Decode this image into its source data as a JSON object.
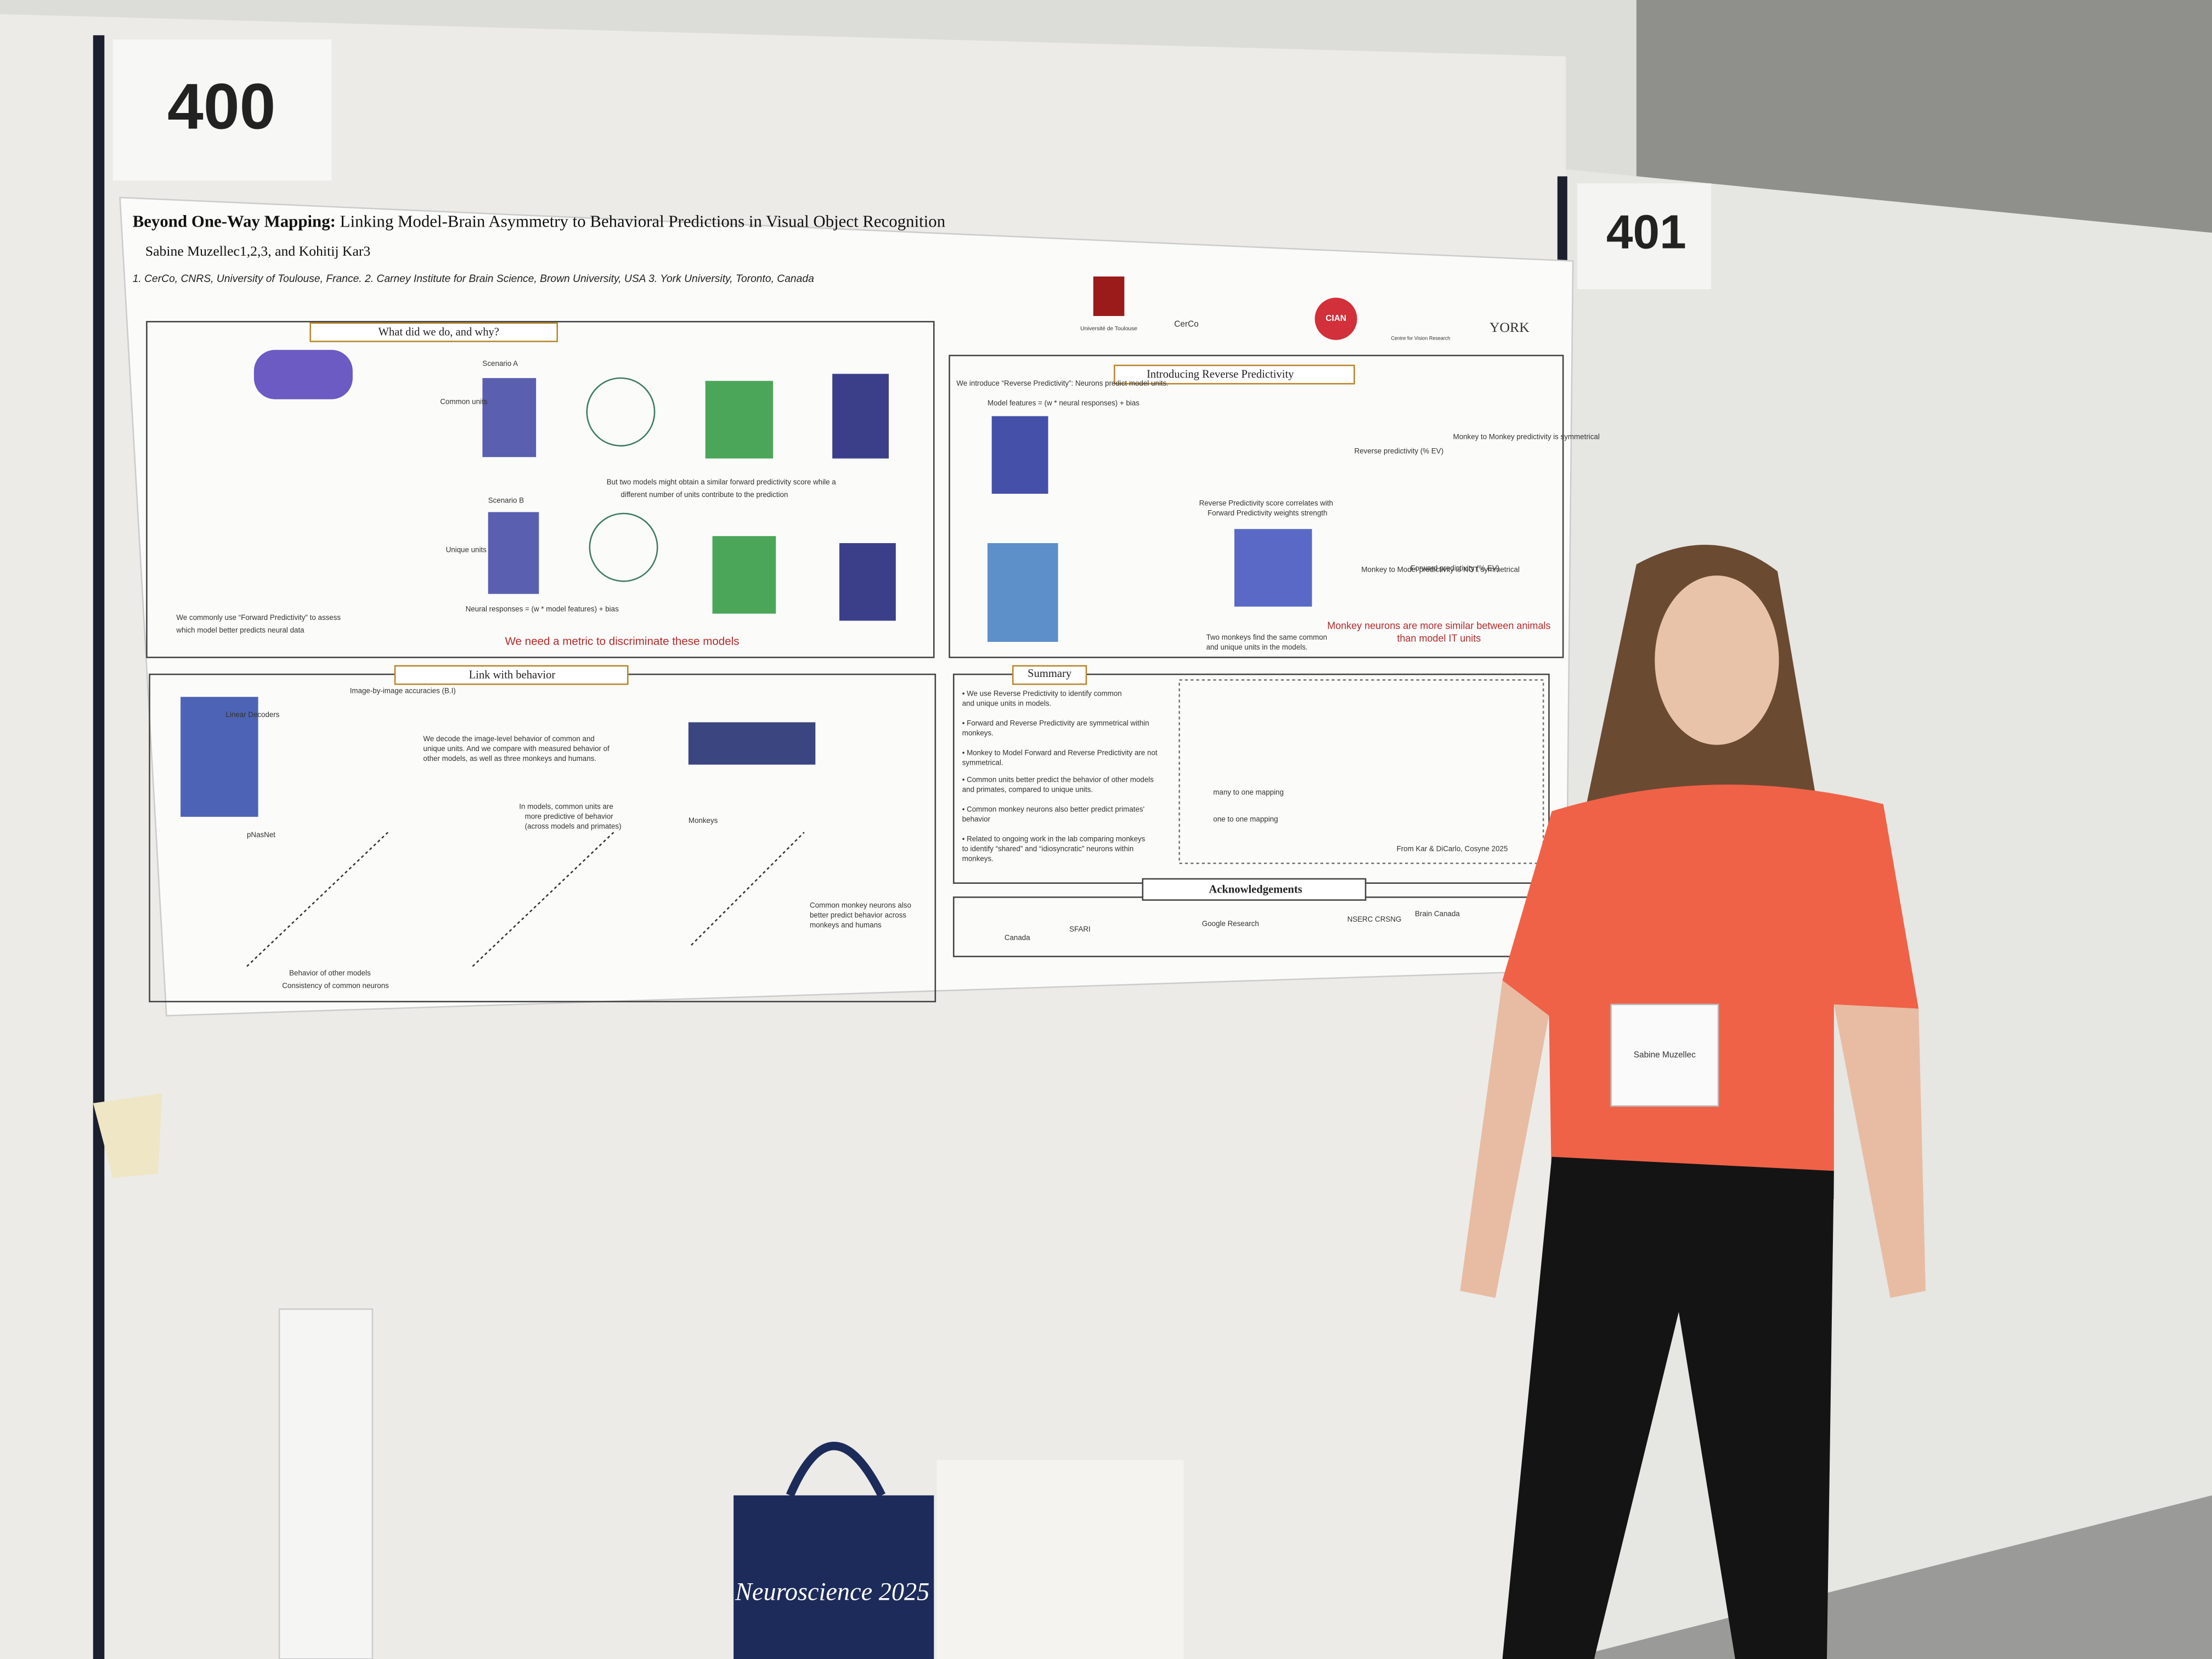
{
  "booths": [
    "400",
    "401"
  ],
  "poster": {
    "title_bold": "Beyond One-Way Mapping:",
    "title_rest": "Linking Model-Brain Asymmetry to Behavioral Predictions in Visual Object Recognition",
    "authors": "Sabine Muzellec1,2,3, and Kohitij Kar3",
    "affiliations": "1.  CerCo, CNRS, University of Toulouse, France.  2.  Carney Institute for Brain Science, Brown University, USA 3.  York University, Toronto, Canada",
    "logos": [
      "Université de Toulouse",
      "CerCo",
      "CIAN",
      "Centre for Vision Research",
      "YORK"
    ],
    "sections": [
      {
        "heading": "What did we do, and why?",
        "texts": [
          "Scenario A",
          "Scenario B",
          "Common units",
          "Unique units",
          "We commonly use “Forward Predictivity” to assess",
          "which model better predicts neural data",
          "But two models might obtain a similar forward predictivity score while a",
          "different number of units contribute to the prediction",
          "Neural responses = (w * model features) + bias"
        ],
        "highlight": "We need a metric to discriminate these models"
      },
      {
        "heading": "Introducing Reverse Predictivity",
        "texts": [
          "We introduce “Reverse Predictivity”: Neurons predict model units.",
          "Model features = (w * neural responses) + bias",
          "Reverse Predictivity score correlates with",
          "Forward Predictivity weights strength",
          "Two monkeys find the same common",
          "and unique units in the models.",
          "Monkey to Monkey predictivity is symmetrical",
          "Monkey to Model predictivity is NOT symmetrical",
          "Forward predictivity (% EV)",
          "Reverse predictivity (% EV)"
        ],
        "highlight": [
          "Monkey neurons are more similar between animals",
          "than model IT units"
        ]
      },
      {
        "heading": "Link with behavior",
        "texts": [
          "Linear Decoders",
          "Image-by-image accuracies (B.I)",
          "We decode the image-level behavior of common and",
          "unique units. And we compare with measured behavior of",
          "other models, as well as three monkeys and humans.",
          "In models, common units are",
          "more predictive of behavior",
          "(across models and primates)",
          "Common monkey neurons also",
          "better predict behavior across",
          "monkeys and humans",
          "pNasNet",
          "Monkeys",
          "Consistency of common neurons",
          "Behavior of other models"
        ]
      },
      {
        "heading": "Summary",
        "texts": [
          "• We use Reverse Predictivity to identify common",
          "  and unique units in models.",
          "• Forward and Reverse Predictivity are symmetrical within",
          "  monkeys.",
          "• Monkey to Model Forward and Reverse Predictivity are not",
          "  symmetrical.",
          "• Common units better predict the behavior of other models",
          "  and primates, compared to unique units.",
          "• Common monkey neurons also better predict primates'",
          "  behavior",
          "• Related to ongoing work in the lab comparing monkeys",
          "  to identify “shared” and “idiosyncratic” neurons within",
          "  monkeys.",
          "many to one mapping",
          "one to one mapping",
          "From Kar & DiCarlo, Cosyne 2025"
        ]
      },
      {
        "heading": "Acknowledgements",
        "texts": [
          "Canada",
          "SFARI",
          "Google Research",
          "NSERC CRSNG",
          "Brain Canada"
        ]
      }
    ]
  },
  "badge": "Sabine Muzellec",
  "bag": "Neuroscience 2025"
}
